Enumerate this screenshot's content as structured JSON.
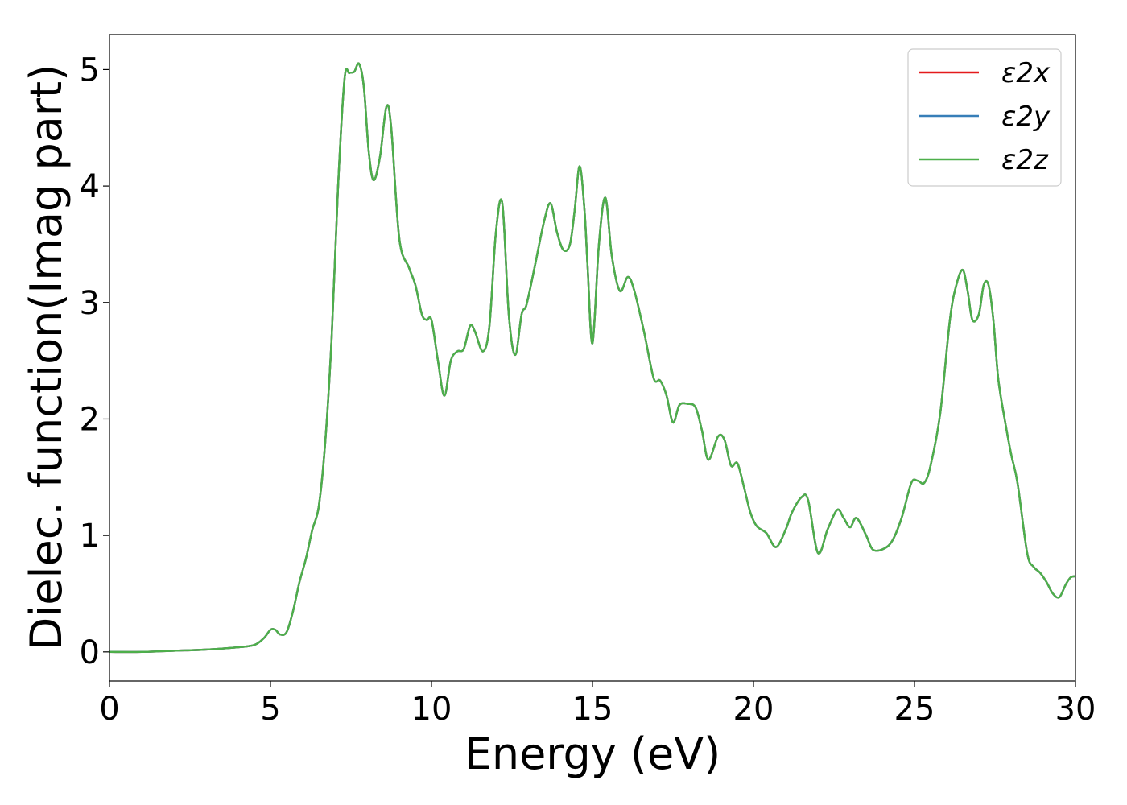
{
  "chart_data": {
    "type": "line",
    "title": "",
    "xlabel": "Energy (eV)",
    "ylabel": "Dielec. function(Imag part)",
    "xlim": [
      0,
      30
    ],
    "ylim": [
      -0.25,
      5.3
    ],
    "xticks": [
      0,
      5,
      10,
      15,
      20,
      25,
      30
    ],
    "yticks": [
      0,
      1,
      2,
      3,
      4,
      5
    ],
    "grid": false,
    "legend_position": "top-right",
    "x": [
      0,
      1,
      2,
      3,
      4,
      4.5,
      4.8,
      5.0,
      5.15,
      5.3,
      5.5,
      5.7,
      5.9,
      6.1,
      6.3,
      6.5,
      6.7,
      6.9,
      7.1,
      7.3,
      7.45,
      7.6,
      7.75,
      7.9,
      8.05,
      8.2,
      8.4,
      8.6,
      8.75,
      9.0,
      9.3,
      9.5,
      9.7,
      9.85,
      10.0,
      10.2,
      10.4,
      10.6,
      10.8,
      11.0,
      11.2,
      11.35,
      11.6,
      11.8,
      12.0,
      12.2,
      12.4,
      12.6,
      12.8,
      12.95,
      13.2,
      13.5,
      13.7,
      13.9,
      14.1,
      14.3,
      14.45,
      14.6,
      14.75,
      14.85,
      15.0,
      15.2,
      15.4,
      15.6,
      15.85,
      16.1,
      16.3,
      16.6,
      16.9,
      17.1,
      17.3,
      17.5,
      17.7,
      17.95,
      18.2,
      18.4,
      18.6,
      18.9,
      19.1,
      19.3,
      19.5,
      19.7,
      19.9,
      20.1,
      20.4,
      20.7,
      21.0,
      21.2,
      21.5,
      21.7,
      22.0,
      22.3,
      22.6,
      22.8,
      23.0,
      23.2,
      23.5,
      23.7,
      24.0,
      24.3,
      24.6,
      24.9,
      25.1,
      25.3,
      25.5,
      25.8,
      26.1,
      26.3,
      26.5,
      26.65,
      26.8,
      27.0,
      27.15,
      27.3,
      27.45,
      27.6,
      27.8,
      28.0,
      28.2,
      28.5,
      28.7,
      28.9,
      29.1,
      29.3,
      29.5,
      29.7,
      29.85,
      30
    ],
    "series": [
      {
        "name": "ε2x",
        "color": "#e41a1c",
        "values": [
          0.0,
          0.0,
          0.01,
          0.02,
          0.04,
          0.06,
          0.12,
          0.19,
          0.19,
          0.15,
          0.17,
          0.35,
          0.6,
          0.8,
          1.05,
          1.25,
          1.8,
          2.7,
          4.0,
          4.92,
          4.97,
          4.98,
          5.05,
          4.85,
          4.3,
          4.05,
          4.25,
          4.68,
          4.5,
          3.55,
          3.3,
          3.15,
          2.9,
          2.85,
          2.85,
          2.5,
          2.2,
          2.5,
          2.58,
          2.6,
          2.8,
          2.75,
          2.58,
          2.8,
          3.6,
          3.85,
          2.9,
          2.55,
          2.9,
          2.98,
          3.3,
          3.7,
          3.85,
          3.6,
          3.45,
          3.5,
          3.8,
          4.17,
          3.8,
          3.3,
          2.65,
          3.5,
          3.9,
          3.4,
          3.1,
          3.22,
          3.1,
          2.75,
          2.35,
          2.33,
          2.2,
          1.97,
          2.12,
          2.13,
          2.1,
          1.9,
          1.65,
          1.85,
          1.82,
          1.6,
          1.62,
          1.42,
          1.2,
          1.08,
          1.02,
          0.9,
          1.05,
          1.2,
          1.33,
          1.3,
          0.85,
          1.05,
          1.22,
          1.15,
          1.07,
          1.15,
          1.0,
          0.88,
          0.88,
          0.95,
          1.15,
          1.45,
          1.47,
          1.45,
          1.6,
          2.05,
          2.85,
          3.15,
          3.28,
          3.1,
          2.85,
          2.9,
          3.15,
          3.15,
          2.85,
          2.35,
          2.0,
          1.7,
          1.45,
          0.85,
          0.73,
          0.68,
          0.6,
          0.5,
          0.47,
          0.58,
          0.64,
          0.65
        ]
      },
      {
        "name": "ε2y",
        "color": "#377eb8",
        "values": [
          0.0,
          0.0,
          0.01,
          0.02,
          0.04,
          0.06,
          0.12,
          0.19,
          0.19,
          0.15,
          0.17,
          0.35,
          0.6,
          0.8,
          1.05,
          1.25,
          1.8,
          2.7,
          4.0,
          4.92,
          4.97,
          4.98,
          5.05,
          4.85,
          4.3,
          4.05,
          4.25,
          4.68,
          4.5,
          3.55,
          3.3,
          3.15,
          2.9,
          2.85,
          2.85,
          2.5,
          2.2,
          2.5,
          2.58,
          2.6,
          2.8,
          2.75,
          2.58,
          2.8,
          3.6,
          3.85,
          2.9,
          2.55,
          2.9,
          2.98,
          3.3,
          3.7,
          3.85,
          3.6,
          3.45,
          3.5,
          3.8,
          4.17,
          3.8,
          3.3,
          2.65,
          3.5,
          3.9,
          3.4,
          3.1,
          3.22,
          3.1,
          2.75,
          2.35,
          2.33,
          2.2,
          1.97,
          2.12,
          2.13,
          2.1,
          1.9,
          1.65,
          1.85,
          1.82,
          1.6,
          1.62,
          1.42,
          1.2,
          1.08,
          1.02,
          0.9,
          1.05,
          1.2,
          1.33,
          1.3,
          0.85,
          1.05,
          1.22,
          1.15,
          1.07,
          1.15,
          1.0,
          0.88,
          0.88,
          0.95,
          1.15,
          1.45,
          1.47,
          1.45,
          1.6,
          2.05,
          2.85,
          3.15,
          3.28,
          3.1,
          2.85,
          2.9,
          3.15,
          3.15,
          2.85,
          2.35,
          2.0,
          1.7,
          1.45,
          0.85,
          0.73,
          0.68,
          0.6,
          0.5,
          0.47,
          0.58,
          0.64,
          0.65
        ]
      },
      {
        "name": "ε2z",
        "color": "#4daf4a",
        "values": [
          0.0,
          0.0,
          0.01,
          0.02,
          0.04,
          0.06,
          0.12,
          0.19,
          0.19,
          0.15,
          0.17,
          0.35,
          0.6,
          0.8,
          1.05,
          1.25,
          1.8,
          2.7,
          4.0,
          4.92,
          4.97,
          4.98,
          5.05,
          4.85,
          4.3,
          4.05,
          4.25,
          4.68,
          4.5,
          3.55,
          3.3,
          3.15,
          2.9,
          2.85,
          2.85,
          2.5,
          2.2,
          2.5,
          2.58,
          2.6,
          2.8,
          2.75,
          2.58,
          2.8,
          3.6,
          3.85,
          2.9,
          2.55,
          2.9,
          2.98,
          3.3,
          3.7,
          3.85,
          3.6,
          3.45,
          3.5,
          3.8,
          4.17,
          3.8,
          3.3,
          2.65,
          3.5,
          3.9,
          3.4,
          3.1,
          3.22,
          3.1,
          2.75,
          2.35,
          2.33,
          2.2,
          1.97,
          2.12,
          2.13,
          2.1,
          1.9,
          1.65,
          1.85,
          1.82,
          1.6,
          1.62,
          1.42,
          1.2,
          1.08,
          1.02,
          0.9,
          1.05,
          1.2,
          1.33,
          1.3,
          0.85,
          1.05,
          1.22,
          1.15,
          1.07,
          1.15,
          1.0,
          0.88,
          0.88,
          0.95,
          1.15,
          1.45,
          1.47,
          1.45,
          1.6,
          2.05,
          2.85,
          3.15,
          3.28,
          3.1,
          2.85,
          2.9,
          3.15,
          3.15,
          2.85,
          2.35,
          2.0,
          1.7,
          1.45,
          0.85,
          0.73,
          0.68,
          0.6,
          0.5,
          0.47,
          0.58,
          0.64,
          0.65
        ]
      }
    ]
  }
}
